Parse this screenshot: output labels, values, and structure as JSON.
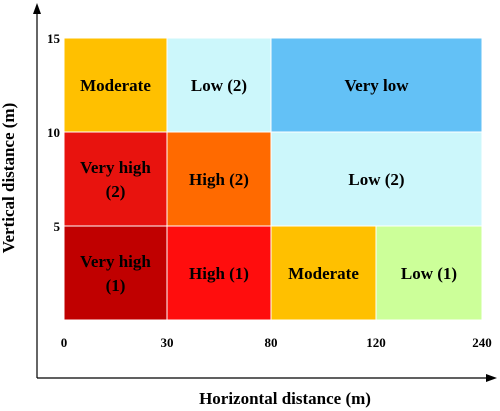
{
  "chart_data": {
    "type": "heatmap",
    "xlabel": "Horizontal distance (m)",
    "ylabel": "Vertical distance (m)",
    "x_ticks": [
      "0",
      "30",
      "80",
      "120",
      "240"
    ],
    "y_ticks": [
      "5",
      "10",
      "15"
    ],
    "ylim": [
      0,
      15
    ],
    "grid": false,
    "cells": [
      {
        "x_range": [
          0,
          30
        ],
        "y_range": [
          10,
          15
        ],
        "label": "Moderate",
        "color": "#FFC000"
      },
      {
        "x_range": [
          30,
          80
        ],
        "y_range": [
          10,
          15
        ],
        "label": "Low (2)",
        "color": "#CCF7FB"
      },
      {
        "x_range": [
          80,
          240
        ],
        "y_range": [
          10,
          15
        ],
        "label": "Very low",
        "color": "#63C1F6"
      },
      {
        "x_range": [
          0,
          30
        ],
        "y_range": [
          5,
          10
        ],
        "label": [
          "Very high",
          "(2)"
        ],
        "color": "#E8130E"
      },
      {
        "x_range": [
          30,
          80
        ],
        "y_range": [
          5,
          10
        ],
        "label": "High (2)",
        "color": "#FF6A00"
      },
      {
        "x_range": [
          80,
          240
        ],
        "y_range": [
          5,
          10
        ],
        "label": "Low (2)",
        "color": "#CCF7FB"
      },
      {
        "x_range": [
          0,
          30
        ],
        "y_range": [
          0,
          5
        ],
        "label": [
          "Very high",
          "(1)"
        ],
        "color": "#C00000"
      },
      {
        "x_range": [
          30,
          80
        ],
        "y_range": [
          0,
          5
        ],
        "label": "High (1)",
        "color": "#FF0D0D"
      },
      {
        "x_range": [
          80,
          120
        ],
        "y_range": [
          0,
          5
        ],
        "label": "Moderate",
        "color": "#FFC000"
      },
      {
        "x_range": [
          120,
          240
        ],
        "y_range": [
          0,
          5
        ],
        "label": "Low (1)",
        "color": "#CCFF99"
      }
    ]
  }
}
